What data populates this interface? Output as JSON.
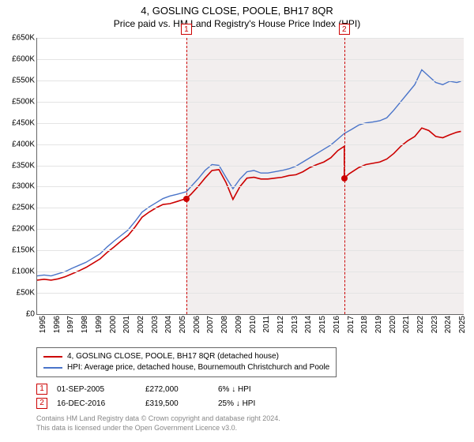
{
  "titles": {
    "main": "4, GOSLING CLOSE, POOLE, BH17 8QR",
    "sub": "Price paid vs. HM Land Registry's House Price Index (HPI)"
  },
  "chart": {
    "type": "line",
    "xlim": [
      1995,
      2025.5
    ],
    "ylim": [
      0,
      650
    ],
    "ytick_step": 50,
    "ytick_prefix": "£",
    "ytick_suffix": "K",
    "xtick_step": 1,
    "xtick_years": [
      1995,
      1996,
      1997,
      1998,
      1999,
      2000,
      2001,
      2002,
      2003,
      2004,
      2005,
      2006,
      2007,
      2008,
      2009,
      2010,
      2011,
      2012,
      2013,
      2014,
      2015,
      2016,
      2017,
      2018,
      2019,
      2020,
      2021,
      2022,
      2023,
      2024,
      2025
    ],
    "grid_color": "#e4e4e4",
    "axis_color": "#666666",
    "background_color": "#ffffff",
    "shade_color": "#f2eeee",
    "shade_from_year": 2005.67,
    "series": [
      {
        "name": "price_paid",
        "label": "4, GOSLING CLOSE, POOLE, BH17 8QR (detached house)",
        "color": "#cc0000",
        "line_width": 1.6,
        "data": [
          [
            1995.0,
            80
          ],
          [
            1995.5,
            82
          ],
          [
            1996.0,
            80
          ],
          [
            1996.5,
            83
          ],
          [
            1997.0,
            88
          ],
          [
            1997.5,
            95
          ],
          [
            1998.0,
            102
          ],
          [
            1998.5,
            110
          ],
          [
            1999.0,
            120
          ],
          [
            1999.5,
            130
          ],
          [
            2000.0,
            145
          ],
          [
            2000.5,
            158
          ],
          [
            2001.0,
            172
          ],
          [
            2001.5,
            185
          ],
          [
            2002.0,
            205
          ],
          [
            2002.5,
            228
          ],
          [
            2003.0,
            240
          ],
          [
            2003.5,
            250
          ],
          [
            2004.0,
            258
          ],
          [
            2004.5,
            260
          ],
          [
            2005.0,
            265
          ],
          [
            2005.67,
            272
          ],
          [
            2006.0,
            282
          ],
          [
            2006.5,
            300
          ],
          [
            2007.0,
            320
          ],
          [
            2007.5,
            338
          ],
          [
            2008.0,
            340
          ],
          [
            2008.5,
            310
          ],
          [
            2009.0,
            270
          ],
          [
            2009.5,
            300
          ],
          [
            2010.0,
            320
          ],
          [
            2010.5,
            322
          ],
          [
            2011.0,
            318
          ],
          [
            2011.5,
            318
          ],
          [
            2012.0,
            320
          ],
          [
            2012.5,
            322
          ],
          [
            2013.0,
            326
          ],
          [
            2013.5,
            328
          ],
          [
            2014.0,
            335
          ],
          [
            2014.5,
            345
          ],
          [
            2015.0,
            352
          ],
          [
            2015.5,
            358
          ],
          [
            2016.0,
            368
          ],
          [
            2016.5,
            385
          ],
          [
            2016.96,
            395
          ],
          [
            2016.961,
            320
          ],
          [
            2017.3,
            330
          ],
          [
            2018.0,
            345
          ],
          [
            2018.5,
            352
          ],
          [
            2019.0,
            355
          ],
          [
            2019.5,
            358
          ],
          [
            2020.0,
            365
          ],
          [
            2020.5,
            378
          ],
          [
            2021.0,
            395
          ],
          [
            2021.5,
            408
          ],
          [
            2022.0,
            418
          ],
          [
            2022.5,
            438
          ],
          [
            2023.0,
            432
          ],
          [
            2023.5,
            418
          ],
          [
            2024.0,
            415
          ],
          [
            2024.5,
            422
          ],
          [
            2025.0,
            428
          ],
          [
            2025.3,
            430
          ]
        ]
      },
      {
        "name": "hpi",
        "label": "HPI: Average price, detached house, Bournemouth Christchurch and Poole",
        "color": "#4a74c9",
        "line_width": 1.4,
        "data": [
          [
            1995.0,
            90
          ],
          [
            1995.5,
            92
          ],
          [
            1996.0,
            90
          ],
          [
            1996.5,
            95
          ],
          [
            1997.0,
            100
          ],
          [
            1997.5,
            108
          ],
          [
            1998.0,
            115
          ],
          [
            1998.5,
            122
          ],
          [
            1999.0,
            132
          ],
          [
            1999.5,
            142
          ],
          [
            2000.0,
            158
          ],
          [
            2000.5,
            172
          ],
          [
            2001.0,
            185
          ],
          [
            2001.5,
            198
          ],
          [
            2002.0,
            218
          ],
          [
            2002.5,
            240
          ],
          [
            2003.0,
            252
          ],
          [
            2003.5,
            262
          ],
          [
            2004.0,
            272
          ],
          [
            2004.5,
            278
          ],
          [
            2005.0,
            282
          ],
          [
            2005.67,
            288
          ],
          [
            2006.0,
            300
          ],
          [
            2006.5,
            318
          ],
          [
            2007.0,
            338
          ],
          [
            2007.5,
            352
          ],
          [
            2008.0,
            350
          ],
          [
            2008.5,
            322
          ],
          [
            2009.0,
            295
          ],
          [
            2009.5,
            318
          ],
          [
            2010.0,
            335
          ],
          [
            2010.5,
            338
          ],
          [
            2011.0,
            332
          ],
          [
            2011.5,
            332
          ],
          [
            2012.0,
            335
          ],
          [
            2012.5,
            338
          ],
          [
            2013.0,
            342
          ],
          [
            2013.5,
            348
          ],
          [
            2014.0,
            358
          ],
          [
            2014.5,
            368
          ],
          [
            2015.0,
            378
          ],
          [
            2015.5,
            388
          ],
          [
            2016.0,
            398
          ],
          [
            2016.5,
            412
          ],
          [
            2016.96,
            425
          ],
          [
            2017.5,
            435
          ],
          [
            2018.0,
            445
          ],
          [
            2018.5,
            450
          ],
          [
            2019.0,
            452
          ],
          [
            2019.5,
            455
          ],
          [
            2020.0,
            462
          ],
          [
            2020.5,
            480
          ],
          [
            2021.0,
            500
          ],
          [
            2021.5,
            520
          ],
          [
            2022.0,
            540
          ],
          [
            2022.5,
            575
          ],
          [
            2023.0,
            560
          ],
          [
            2023.5,
            545
          ],
          [
            2024.0,
            540
          ],
          [
            2024.5,
            548
          ],
          [
            2025.0,
            545
          ],
          [
            2025.3,
            548
          ]
        ]
      }
    ],
    "markers": [
      {
        "n": "1",
        "year": 2005.67,
        "dot_value": 272,
        "color": "#cc0000"
      },
      {
        "n": "2",
        "year": 2016.96,
        "dot_value": 320,
        "color": "#cc0000"
      }
    ]
  },
  "legend": {
    "items": [
      {
        "series": "price_paid"
      },
      {
        "series": "hpi"
      }
    ]
  },
  "sales": [
    {
      "n": "1",
      "date": "01-SEP-2005",
      "price": "£272,000",
      "diff_pct": "6%",
      "diff_dir": "down",
      "diff_suffix": "HPI"
    },
    {
      "n": "2",
      "date": "16-DEC-2016",
      "price": "£319,500",
      "diff_pct": "25%",
      "diff_dir": "down",
      "diff_suffix": "HPI"
    }
  ],
  "footer": {
    "line1": "Contains HM Land Registry data © Crown copyright and database right 2024.",
    "line2": "This data is licensed under the Open Government Licence v3.0."
  }
}
